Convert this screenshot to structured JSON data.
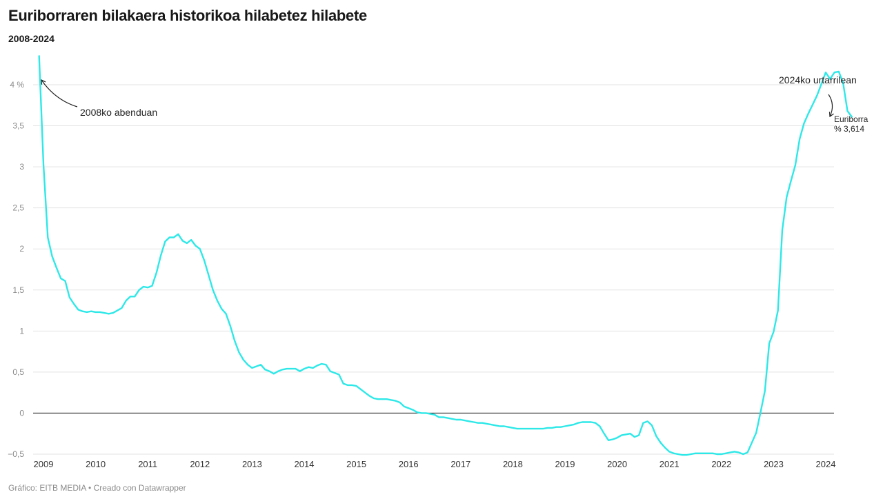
{
  "header": {
    "title": "Euriborraren bilakaera historikoa hilabetez hilabete",
    "subtitle": "2008-2024"
  },
  "footer": {
    "credit": "Gráfico: EITB MEDIA • Creado con Datawrapper"
  },
  "chart_data": {
    "type": "line",
    "title": "Euriborraren bilakaera historikoa hilabetez hilabete",
    "subtitle": "2008-2024",
    "xlabel": "",
    "ylabel": "",
    "x_start": "2008-12",
    "x_step": "month",
    "xlim": [
      2008.917,
      2024.1
    ],
    "ylim": [
      -0.5,
      4.2
    ],
    "y_ticks": [
      {
        "value": -0.5,
        "label": "−0,5"
      },
      {
        "value": 0,
        "label": "0"
      },
      {
        "value": 0.5,
        "label": "0,5"
      },
      {
        "value": 1,
        "label": "1"
      },
      {
        "value": 1.5,
        "label": "1,5"
      },
      {
        "value": 2,
        "label": "2"
      },
      {
        "value": 2.5,
        "label": "2,5"
      },
      {
        "value": 3,
        "label": "3"
      },
      {
        "value": 3.5,
        "label": "3,5"
      },
      {
        "value": 4,
        "label": "4 %"
      }
    ],
    "x_ticks": [
      {
        "value": 2009,
        "label": "2009"
      },
      {
        "value": 2010,
        "label": "2010"
      },
      {
        "value": 2011,
        "label": "2011"
      },
      {
        "value": 2012,
        "label": "2012"
      },
      {
        "value": 2013,
        "label": "2013"
      },
      {
        "value": 2014,
        "label": "2014"
      },
      {
        "value": 2015,
        "label": "2015"
      },
      {
        "value": 2016,
        "label": "2016"
      },
      {
        "value": 2017,
        "label": "2017"
      },
      {
        "value": 2018,
        "label": "2018"
      },
      {
        "value": 2019,
        "label": "2019"
      },
      {
        "value": 2020,
        "label": "2020"
      },
      {
        "value": 2021,
        "label": "2021"
      },
      {
        "value": 2022,
        "label": "2022"
      },
      {
        "value": 2023,
        "label": "2023"
      },
      {
        "value": 2024,
        "label": "2024"
      }
    ],
    "grid": true,
    "color": "#2ee8e8",
    "series": [
      {
        "name": "Euriborra",
        "values": [
          4.35,
          3.03,
          2.14,
          1.91,
          1.77,
          1.64,
          1.61,
          1.41,
          1.33,
          1.26,
          1.24,
          1.23,
          1.24,
          1.23,
          1.23,
          1.22,
          1.21,
          1.22,
          1.25,
          1.28,
          1.37,
          1.42,
          1.42,
          1.5,
          1.54,
          1.53,
          1.55,
          1.71,
          1.92,
          2.09,
          2.14,
          2.14,
          2.18,
          2.1,
          2.07,
          2.11,
          2.04,
          2.0,
          1.86,
          1.68,
          1.5,
          1.37,
          1.27,
          1.21,
          1.06,
          0.88,
          0.74,
          0.65,
          0.59,
          0.55,
          0.57,
          0.59,
          0.53,
          0.51,
          0.48,
          0.51,
          0.53,
          0.54,
          0.54,
          0.54,
          0.51,
          0.54,
          0.56,
          0.55,
          0.58,
          0.6,
          0.59,
          0.51,
          0.49,
          0.47,
          0.36,
          0.34,
          0.34,
          0.33,
          0.29,
          0.25,
          0.21,
          0.18,
          0.17,
          0.17,
          0.17,
          0.16,
          0.15,
          0.13,
          0.08,
          0.06,
          0.04,
          0.01,
          0.0,
          0.0,
          -0.01,
          -0.02,
          -0.05,
          -0.05,
          -0.06,
          -0.07,
          -0.08,
          -0.08,
          -0.09,
          -0.1,
          -0.11,
          -0.12,
          -0.12,
          -0.13,
          -0.14,
          -0.15,
          -0.16,
          -0.16,
          -0.17,
          -0.18,
          -0.19,
          -0.19,
          -0.19,
          -0.19,
          -0.19,
          -0.19,
          -0.19,
          -0.18,
          -0.18,
          -0.17,
          -0.17,
          -0.16,
          -0.15,
          -0.14,
          -0.12,
          -0.11,
          -0.11,
          -0.11,
          -0.12,
          -0.16,
          -0.25,
          -0.33,
          -0.32,
          -0.3,
          -0.27,
          -0.26,
          -0.25,
          -0.29,
          -0.27,
          -0.12,
          -0.1,
          -0.15,
          -0.28,
          -0.36,
          -0.42,
          -0.47,
          -0.49,
          -0.5,
          -0.51,
          -0.51,
          -0.5,
          -0.49,
          -0.49,
          -0.49,
          -0.49,
          -0.49,
          -0.5,
          -0.5,
          -0.49,
          -0.48,
          -0.47,
          -0.48,
          -0.5,
          -0.48,
          -0.36,
          -0.24,
          0.01,
          0.27,
          0.85,
          0.99,
          1.25,
          2.23,
          2.63,
          2.83,
          3.02,
          3.34,
          3.53,
          3.65,
          3.76,
          3.87,
          4.01,
          4.15,
          4.07,
          4.15,
          4.16,
          4.02,
          3.68,
          3.61
        ]
      }
    ],
    "annotations": [
      {
        "text": "2008ko abenduan",
        "target_date": "2008-12"
      },
      {
        "text": "2024ko urtarrilean",
        "target_date": "2024-01"
      },
      {
        "text_line1": "Euriborra",
        "text_line2": "% 3,614",
        "target_date": "2024-01"
      }
    ]
  }
}
